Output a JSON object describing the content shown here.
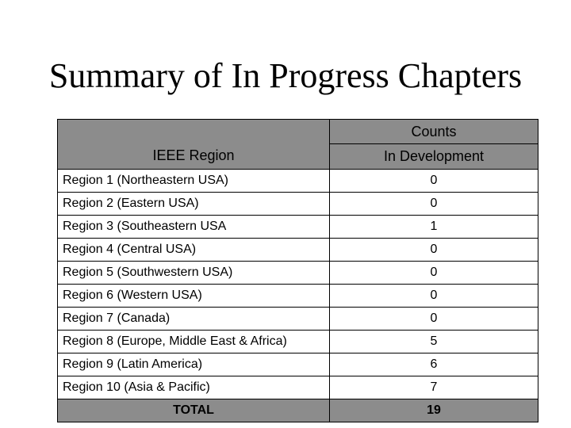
{
  "title": "Summary of In Progress Chapters",
  "table": {
    "header_region": "IEEE Region",
    "header_counts": "Counts",
    "header_dev": "In Development",
    "rows": [
      {
        "region": "Region 1 (Northeastern USA)",
        "value": "0"
      },
      {
        "region": "Region 2 (Eastern USA)",
        "value": "0"
      },
      {
        "region": "Region 3 (Southeastern USA",
        "value": "1"
      },
      {
        "region": "Region 4 (Central USA)",
        "value": "0"
      },
      {
        "region": "Region 5 (Southwestern USA)",
        "value": "0"
      },
      {
        "region": "Region 6 (Western USA)",
        "value": "0"
      },
      {
        "region": "Region 7 (Canada)",
        "value": "0"
      },
      {
        "region": "Region 8 (Europe, Middle East & Africa)",
        "value": "5"
      },
      {
        "region": "Region 9 (Latin America)",
        "value": "6"
      },
      {
        "region": "Region 10 (Asia & Pacific)",
        "value": "7"
      }
    ],
    "total_label": "TOTAL",
    "total_value": "19"
  }
}
